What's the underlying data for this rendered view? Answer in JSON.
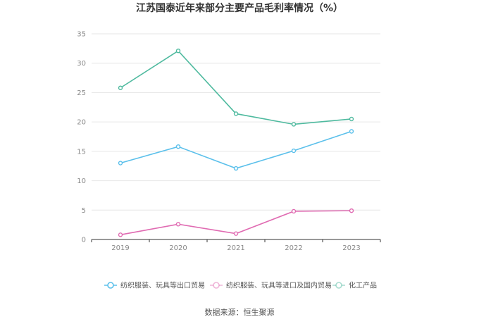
{
  "chart_data": {
    "type": "line",
    "title": "江苏国泰近年来部分主要产品毛利率情况（%）",
    "x": [
      "2019",
      "2020",
      "2021",
      "2022",
      "2023"
    ],
    "ylim": [
      0,
      35
    ],
    "yticks": [
      "0",
      "5",
      "10",
      "15",
      "20",
      "25",
      "30",
      "35"
    ],
    "grid": true,
    "legend_position": "bottom",
    "series": [
      {
        "name": "纺织服装、玩具等出口贸易",
        "color": "#5bc0eb",
        "values": [
          13.0,
          15.8,
          12.1,
          15.1,
          18.4
        ]
      },
      {
        "name": "纺织服装、玩具等进口及国内贸易",
        "color": "#e06bb2",
        "values": [
          0.8,
          2.6,
          1.0,
          4.8,
          4.9
        ]
      },
      {
        "name": "化工产品",
        "color": "#4fba9f",
        "values": [
          25.8,
          32.1,
          21.4,
          19.6,
          20.5
        ]
      }
    ]
  },
  "source": "数据来源：恒生聚源"
}
